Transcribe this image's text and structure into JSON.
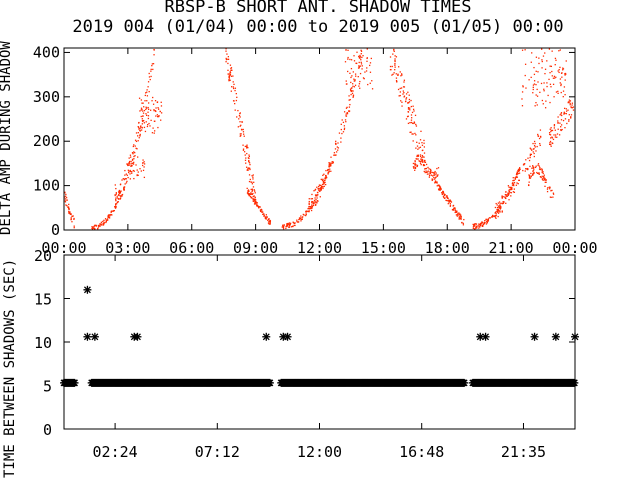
{
  "chart_data": {
    "title": "RBSP-B SHORT ANT. SHADOW TIMES",
    "subtitle": "2019 004 (01/04) 00:00 to 2019 005 (01/05) 00:00",
    "panels": [
      {
        "type": "scatter",
        "ylabel": "DELTA AMP DURING SHADOW",
        "xlim": [
          0,
          24
        ],
        "ylim": [
          0,
          410
        ],
        "yticks": [
          "0",
          "100",
          "200",
          "300",
          "400"
        ],
        "xticks": [
          "00:00",
          "03:00",
          "06:00",
          "09:00",
          "12:00",
          "15:00",
          "18:00",
          "21:00",
          "00:00"
        ],
        "color": "#ff2a00",
        "shadow_intervals_hours": [
          [
            0,
            0.5
          ],
          [
            1.3,
            9.7
          ],
          [
            10.2,
            18.8
          ],
          [
            19.2,
            24
          ]
        ]
      },
      {
        "type": "scatter",
        "ylabel": "TIME BETWEEN SHADOWS (SEC)",
        "xlim": [
          0,
          24
        ],
        "ylim": [
          0,
          20
        ],
        "yticks": [
          "0",
          "5",
          "10",
          "15",
          "20"
        ],
        "xticks": [
          "02:24",
          "07:12",
          "12:00",
          "16:48",
          "21:35"
        ],
        "color": "#000000",
        "baseline_value_sec": 5.3,
        "outliers": [
          {
            "x": 1.1,
            "y": 16
          },
          {
            "x": 1.1,
            "y": 10.6
          },
          {
            "x": 1.45,
            "y": 10.6
          },
          {
            "x": 3.3,
            "y": 10.6
          },
          {
            "x": 3.45,
            "y": 10.6
          },
          {
            "x": 9.5,
            "y": 10.6
          },
          {
            "x": 10.3,
            "y": 10.6
          },
          {
            "x": 10.5,
            "y": 10.6
          },
          {
            "x": 19.55,
            "y": 10.6
          },
          {
            "x": 19.8,
            "y": 10.6
          },
          {
            "x": 22.1,
            "y": 10.6
          },
          {
            "x": 23.1,
            "y": 10.6
          },
          {
            "x": 24,
            "y": 10.6
          }
        ]
      }
    ]
  }
}
